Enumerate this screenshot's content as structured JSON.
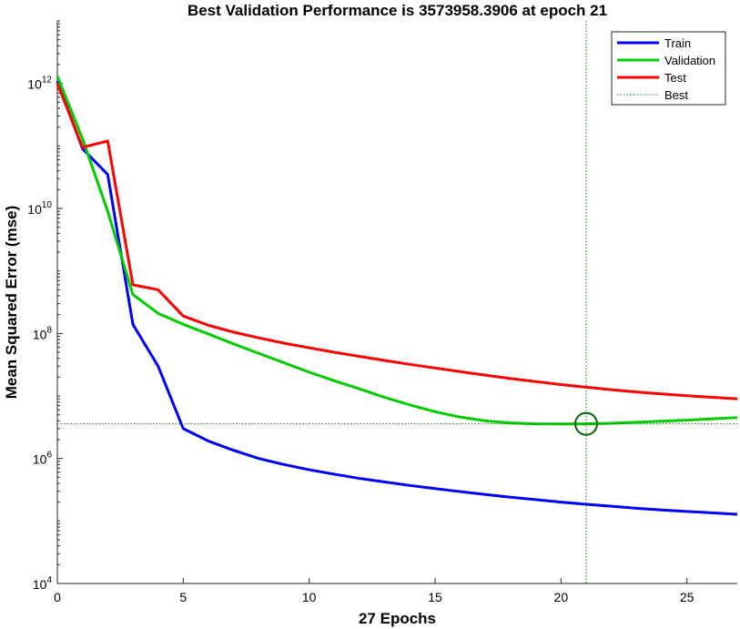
{
  "chart_data": {
    "type": "line",
    "title": "Best Validation Performance is 3573958.3906 at epoch 21",
    "xlabel": "27 Epochs",
    "ylabel": "Mean Squared Error  (mse)",
    "xlim": [
      0,
      27
    ],
    "ylim": [
      10000,
      10000000000000.0
    ],
    "yscale": "log",
    "x_ticks": [
      0,
      5,
      10,
      15,
      20,
      25
    ],
    "y_ticks": [
      {
        "value": 10000,
        "base": "10",
        "exp": "4"
      },
      {
        "value": 1000000,
        "base": "10",
        "exp": "6"
      },
      {
        "value": 100000000,
        "base": "10",
        "exp": "8"
      },
      {
        "value": 10000000000,
        "base": "10",
        "exp": "10"
      },
      {
        "value": 1000000000000,
        "base": "10",
        "exp": "12"
      }
    ],
    "x": [
      0,
      1,
      2,
      3,
      4,
      5,
      6,
      7,
      8,
      9,
      10,
      11,
      12,
      13,
      14,
      15,
      16,
      17,
      18,
      19,
      20,
      21,
      22,
      23,
      24,
      25,
      26,
      27
    ],
    "series": [
      {
        "name": "Train",
        "color": "#0000ff",
        "values": [
          1100000000000.0,
          90000000000.0,
          35000000000.0,
          140000000.0,
          30000000.0,
          3000000.0,
          1900000.0,
          1350000.0,
          1000000.0,
          800000.0,
          660000.0,
          560000.0,
          480000.0,
          420000.0,
          370000.0,
          330000.0,
          295000.0,
          265000.0,
          240000.0,
          220000.0,
          200000.0,
          185000.0,
          172000.0,
          160000.0,
          150000.0,
          142000.0,
          135000.0,
          128000.0
        ]
      },
      {
        "name": "Validation",
        "color": "#00cc00",
        "values": [
          1300000000000.0,
          130000000000.0,
          9000000000.0,
          420000000.0,
          210000000.0,
          140000000.0,
          98000000.0,
          68000000.0,
          48000000.0,
          34000000.0,
          24000000.0,
          17500000.0,
          13000000.0,
          9500000.0,
          7200000.0,
          5600000.0,
          4600000.0,
          4000000.0,
          3700000.0,
          3580000.0,
          3570000.0,
          3573958.3906,
          3650000.0,
          3800000.0,
          3950000.0,
          4100000.0,
          4300000.0,
          4500000.0
        ]
      },
      {
        "name": "Test",
        "color": "#ff0000",
        "values": [
          1000000000000.0,
          95000000000.0,
          120000000000.0,
          600000000.0,
          500000000.0,
          190000000.0,
          135000000.0,
          105000000.0,
          85000000.0,
          70000000.0,
          59000000.0,
          50000000.0,
          43000000.0,
          37000000.0,
          32000000.0,
          28000000.0,
          24500000.0,
          21500000.0,
          19000000.0,
          17000000.0,
          15200000.0,
          13800000.0,
          12600000.0,
          11600000.0,
          10800000.0,
          10100000.0,
          9500000.0,
          9000000.0
        ]
      }
    ],
    "best": {
      "name": "Best",
      "epoch": 21,
      "value": 3573958.3906,
      "color": "#008000"
    },
    "legend": {
      "placement": "top-right"
    },
    "grid": false
  }
}
